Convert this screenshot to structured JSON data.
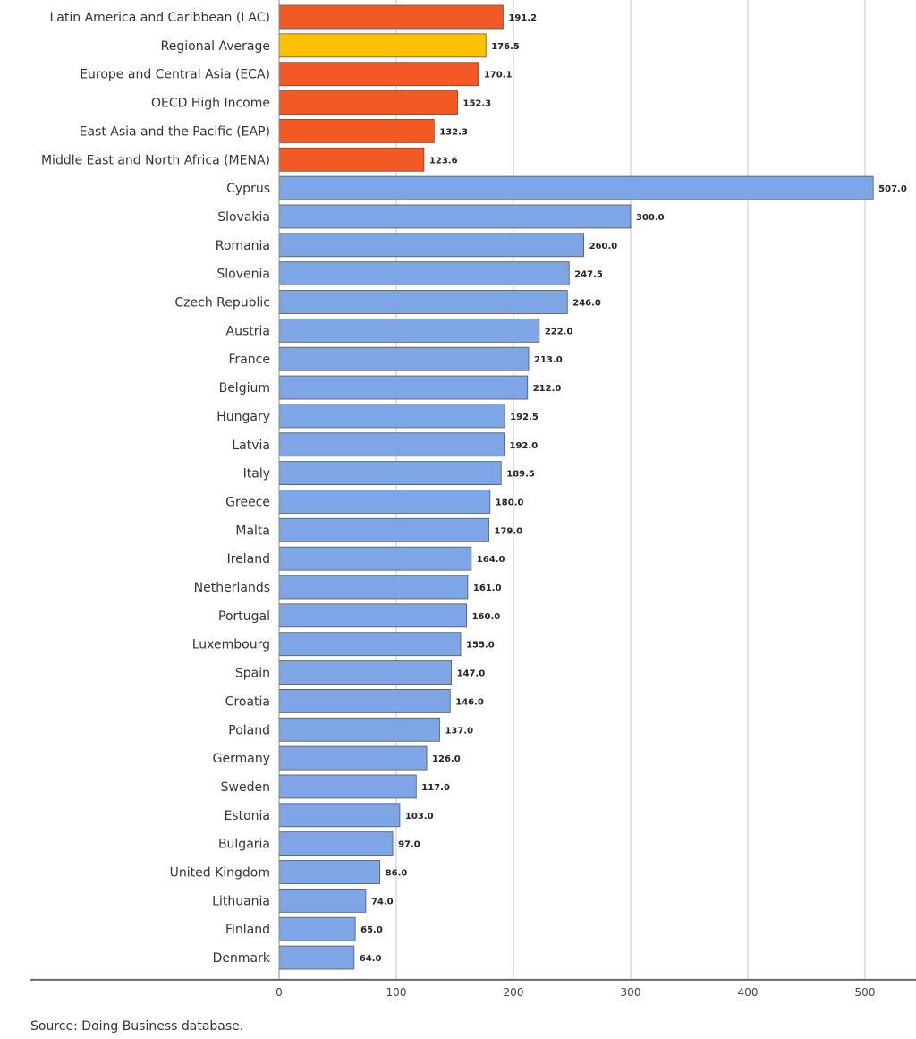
{
  "chart_data": {
    "type": "bar",
    "orientation": "horizontal",
    "categories": [
      "Latin America and Caribbean (LAC)",
      "Regional Average",
      "Europe and Central Asia (ECA)",
      "OECD High Income",
      "East Asia and the Pacific (EAP)",
      "Middle East and North Africa (MENA)",
      "Cyprus",
      "Slovakia",
      "Romania",
      "Slovenia",
      "Czech Republic",
      "Austria",
      "France",
      "Belgium",
      "Hungary",
      "Latvia",
      "Italy",
      "Greece",
      "Malta",
      "Ireland",
      "Netherlands",
      "Portugal",
      "Luxembourg",
      "Spain",
      "Croatia",
      "Poland",
      "Germany",
      "Sweden",
      "Estonia",
      "Bulgaria",
      "United Kingdom",
      "Lithuania",
      "Finland",
      "Denmark"
    ],
    "values": [
      191.2,
      176.5,
      170.1,
      152.3,
      132.3,
      123.6,
      507.0,
      300.0,
      260.0,
      247.5,
      246.0,
      222.0,
      213.0,
      212.0,
      192.5,
      192.0,
      189.5,
      180.0,
      179.0,
      164.0,
      161.0,
      160.0,
      155.0,
      147.0,
      146.0,
      137.0,
      126.0,
      117.0,
      103.0,
      97.0,
      86.0,
      74.0,
      65.0,
      64.0
    ],
    "value_labels": [
      "191.2",
      "176.5",
      "170.1",
      "152.3",
      "132.3",
      "123.6",
      "507.0",
      "300.0",
      "260.0",
      "247.5",
      "246.0",
      "222.0",
      "213.0",
      "212.0",
      "192.5",
      "192.0",
      "189.5",
      "180.0",
      "179.0",
      "164.0",
      "161.0",
      "160.0",
      "155.0",
      "147.0",
      "146.0",
      "137.0",
      "126.0",
      "117.0",
      "103.0",
      "97.0",
      "86.0",
      "74.0",
      "65.0",
      "64.0"
    ],
    "bar_groups": [
      "region",
      "average",
      "region",
      "region",
      "region",
      "region",
      "country",
      "country",
      "country",
      "country",
      "country",
      "country",
      "country",
      "country",
      "country",
      "country",
      "country",
      "country",
      "country",
      "country",
      "country",
      "country",
      "country",
      "country",
      "country",
      "country",
      "country",
      "country",
      "country",
      "country",
      "country",
      "country",
      "country",
      "country"
    ],
    "colors": {
      "region": "#f15a24",
      "average": "#ffc000",
      "country": "#7ea6e6",
      "bar_border": "#555555",
      "grid": "#d9d9d9",
      "axis": "#888888"
    },
    "xticks": [
      0,
      100,
      200,
      300,
      400,
      500
    ],
    "xtick_labels": [
      "0",
      "100",
      "200",
      "300",
      "400",
      "500"
    ],
    "xlim": [
      0,
      510
    ],
    "grid": true,
    "legend": "none",
    "title": "",
    "xlabel": "",
    "ylabel": ""
  },
  "footer": {
    "source": "Source: Doing Business database."
  }
}
